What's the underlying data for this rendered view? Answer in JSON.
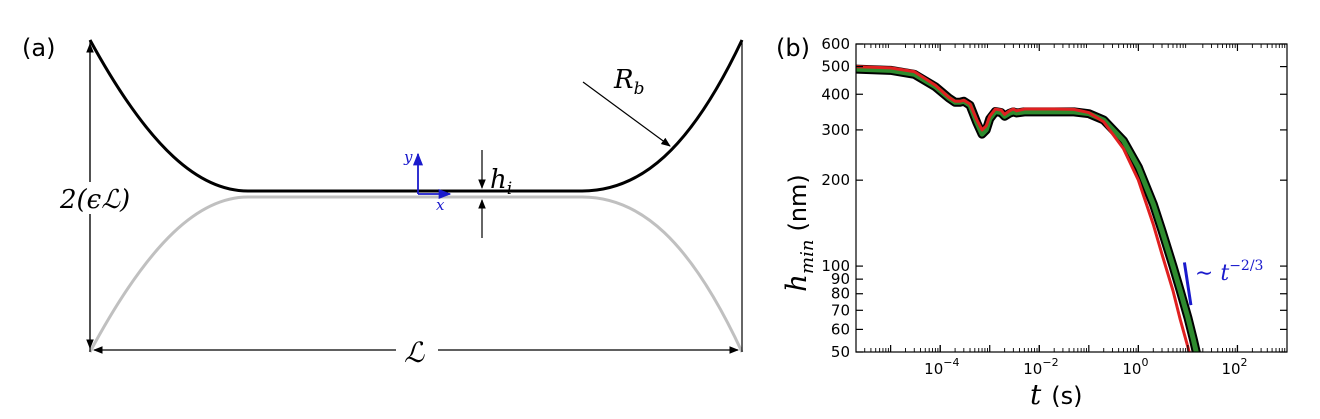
{
  "panel_a": {
    "label": "(a)",
    "height_label": "2(ϵℒ)",
    "length_label": "ℒ",
    "film_label_base": "h",
    "film_label_sub": "i",
    "radius_label_base": "R",
    "radius_label_sub": "b",
    "axis_y_label": "y",
    "axis_x_label": "x",
    "colors": {
      "curve_top": "#000000",
      "curve_bottom": "#c0c0c0",
      "axes_arrows": "#1a1acc"
    }
  },
  "chart_data": {
    "type": "line",
    "panel_label": "(b)",
    "xlabel_var": "t",
    "xlabel_unit": "(s)",
    "ylabel_base": "h",
    "ylabel_sub": "min",
    "ylabel_unit": "(nm)",
    "xscale": "log",
    "yscale": "log",
    "xlim": [
      2e-06,
      1000
    ],
    "ylim": [
      50,
      600
    ],
    "grid": false,
    "x_ticks": [
      {
        "value": 0.0001,
        "base": "10",
        "exp": "−4"
      },
      {
        "value": 0.01,
        "base": "10",
        "exp": "−2"
      },
      {
        "value": 1,
        "base": "10",
        "exp": "0"
      },
      {
        "value": 100,
        "base": "10",
        "exp": "2"
      }
    ],
    "y_ticks": [
      {
        "value": 50,
        "label": "50"
      },
      {
        "value": 60,
        "label": "60"
      },
      {
        "value": 70,
        "label": "70"
      },
      {
        "value": 80,
        "label": "80"
      },
      {
        "value": 90,
        "label": "90"
      },
      {
        "value": 100,
        "label": "100"
      },
      {
        "value": 200,
        "label": "200"
      },
      {
        "value": 300,
        "label": "300"
      },
      {
        "value": 400,
        "label": "400"
      },
      {
        "value": 500,
        "label": "500"
      },
      {
        "value": 600,
        "label": "600"
      }
    ],
    "series": [
      {
        "color": "#e02020",
        "x": [
          2e-06,
          1e-05,
          3e-05,
          8e-05,
          0.00015,
          0.0002,
          0.00025,
          0.0003,
          0.0004,
          0.00055,
          0.0007,
          0.00085,
          0.001,
          0.0013,
          0.0017,
          0.002,
          0.0025,
          0.003,
          0.0035,
          0.004,
          0.005,
          0.007,
          0.01,
          0.02,
          0.05,
          0.1,
          0.2,
          0.5,
          1,
          2,
          3,
          5,
          7,
          10,
          13
        ],
        "y": [
          500,
          495,
          480,
          430,
          390,
          378,
          378,
          381,
          370,
          325,
          300,
          310,
          335,
          355,
          352,
          340,
          350,
          355,
          350,
          352,
          355,
          355,
          355,
          355,
          354,
          345,
          320,
          258,
          200,
          140,
          110,
          82,
          65,
          52,
          44
        ]
      },
      {
        "color": "#000000",
        "x": [
          2e-06,
          1e-05,
          3e-05,
          8e-05,
          0.00015,
          0.0002,
          0.00025,
          0.0003,
          0.0004,
          0.00055,
          0.0007,
          0.00085,
          0.001,
          0.0013,
          0.0017,
          0.002,
          0.0025,
          0.003,
          0.0035,
          0.004,
          0.005,
          0.007,
          0.01,
          0.02,
          0.05,
          0.1,
          0.2,
          0.5,
          1,
          2,
          3,
          5,
          7,
          10,
          13,
          16
        ],
        "y": [
          490,
          485,
          470,
          425,
          388,
          375,
          375,
          378,
          366,
          318,
          290,
          300,
          328,
          348,
          345,
          335,
          343,
          347,
          344,
          345,
          347,
          347,
          347,
          347,
          347,
          342,
          325,
          275,
          222,
          165,
          133,
          100,
          82,
          66,
          55,
          47
        ]
      },
      {
        "color": "#2e8b2e",
        "x": [
          2e-06,
          1e-05,
          3e-05,
          8e-05,
          0.00015,
          0.0002,
          0.00025,
          0.0003,
          0.0004,
          0.00055,
          0.0007,
          0.00085,
          0.001,
          0.0013,
          0.0017,
          0.002,
          0.0025,
          0.003,
          0.0035,
          0.004,
          0.005,
          0.007,
          0.01,
          0.02,
          0.05,
          0.1,
          0.2,
          0.5,
          1,
          2,
          3,
          5,
          7,
          10,
          13,
          16
        ],
        "y": [
          490,
          485,
          470,
          425,
          388,
          375,
          375,
          378,
          366,
          318,
          290,
          300,
          328,
          348,
          345,
          335,
          343,
          347,
          344,
          345,
          347,
          347,
          347,
          347,
          347,
          342,
          325,
          275,
          222,
          165,
          133,
          100,
          82,
          66,
          55,
          47
        ]
      }
    ],
    "annotation": {
      "prefix": "∼",
      "base": "t",
      "exp": "−2/3",
      "color": "#1a1acc",
      "line_x": [
        8.5,
        11.5
      ],
      "line_y": [
        103,
        73
      ]
    }
  }
}
